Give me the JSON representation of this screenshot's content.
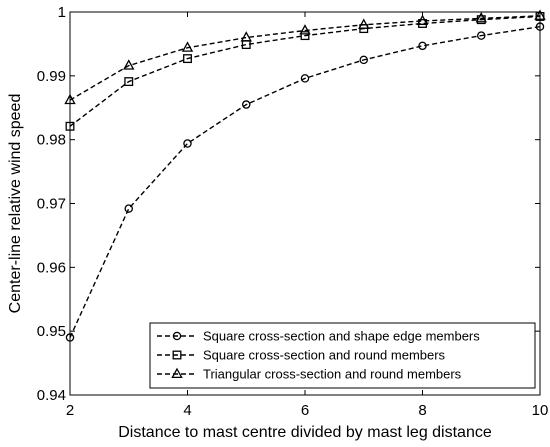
{
  "chart_data": {
    "type": "line",
    "xlabel": "Distance to mast centre divided by mast leg distance",
    "ylabel": "Center-line relative wind speed",
    "xlim": [
      2,
      10
    ],
    "ylim": [
      0.94,
      1
    ],
    "xticks": [
      2,
      4,
      6,
      8,
      10
    ],
    "yticks": [
      0.94,
      0.95,
      0.96,
      0.97,
      0.98,
      0.99,
      1
    ],
    "xtick_labels": [
      "2",
      "4",
      "6",
      "8",
      "10"
    ],
    "ytick_labels": [
      "0.94",
      "0.95",
      "0.96",
      "0.97",
      "0.98",
      "0.99",
      "1"
    ],
    "grid": false,
    "legend_position": "bottom-right",
    "x": [
      2,
      3,
      4,
      5,
      6,
      7,
      8,
      9,
      10
    ],
    "series": [
      {
        "name": "Square cross-section and shape edge members",
        "marker": "circle",
        "values": [
          0.949,
          0.9692,
          0.9794,
          0.9855,
          0.9896,
          0.9925,
          0.9947,
          0.9963,
          0.9977
        ]
      },
      {
        "name": "Square cross-section and round members",
        "marker": "square",
        "values": [
          0.9821,
          0.9891,
          0.9927,
          0.9949,
          0.9963,
          0.9974,
          0.9982,
          0.9988,
          0.9993
        ]
      },
      {
        "name": "Triangular cross-section and round members",
        "marker": "triangle",
        "values": [
          0.9862,
          0.9916,
          0.9944,
          0.996,
          0.9971,
          0.998,
          0.9986,
          0.999,
          0.9994
        ]
      }
    ]
  }
}
